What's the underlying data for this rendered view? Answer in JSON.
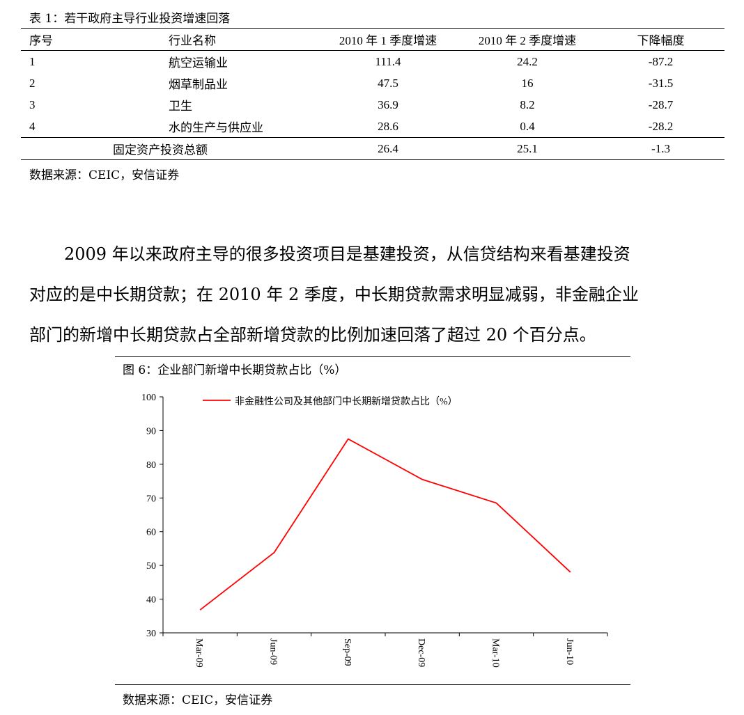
{
  "table": {
    "title": "表 1：若干政府主导行业投资增速回落",
    "headers": [
      "序号",
      "行业名称",
      "2010 年 1 季度增速",
      "2010 年 2 季度增速",
      "下降幅度"
    ],
    "rows": [
      {
        "no": "1",
        "name": "航空运输业",
        "q1": "111.4",
        "q2": "24.2",
        "drop": "-87.2"
      },
      {
        "no": "2",
        "name": "烟草制品业",
        "q1": "47.5",
        "q2": "16",
        "drop": "-31.5"
      },
      {
        "no": "3",
        "name": "卫生",
        "q1": "36.9",
        "q2": "8.2",
        "drop": "-28.7"
      },
      {
        "no": "4",
        "name": "水的生产与供应业",
        "q1": "28.6",
        "q2": "0.4",
        "drop": "-28.2"
      }
    ],
    "total": {
      "name": "固定资产投资总额",
      "q1": "26.4",
      "q2": "25.1",
      "drop": "-1.3"
    },
    "source": "数据来源：CEIC，安信证券"
  },
  "paragraph": [
    "2009 年以来政府主导的很多投资项目是基建投资，从信贷结构来看基建投资",
    "对应的是中长期贷款；在 2010 年 2 季度，中长期贷款需求明显减弱，非金融企业",
    "部门的新增中长期贷款占全部新增贷款的比例加速回落了超过 20 个百分点。"
  ],
  "figure": {
    "title": "图 6：企业部门新增中长期贷款占比（%）",
    "source": "数据来源：CEIC，安信证券"
  },
  "chart_data": {
    "type": "line",
    "x": [
      "Mar-09",
      "Jun-09",
      "Sep-09",
      "Dec-09",
      "Mar-10",
      "Jun-10"
    ],
    "series": [
      {
        "name": "非金融性公司及其他部门中长期新增贷款占比（%）",
        "values": [
          36.8,
          53.8,
          87.5,
          75.5,
          68.5,
          48.0
        ],
        "color": "#ff0000"
      }
    ],
    "ylim": [
      30,
      100
    ],
    "yticks": [
      "30",
      "40",
      "50",
      "60",
      "70",
      "80",
      "90",
      "100"
    ],
    "grid": false,
    "legend": "top-center"
  }
}
